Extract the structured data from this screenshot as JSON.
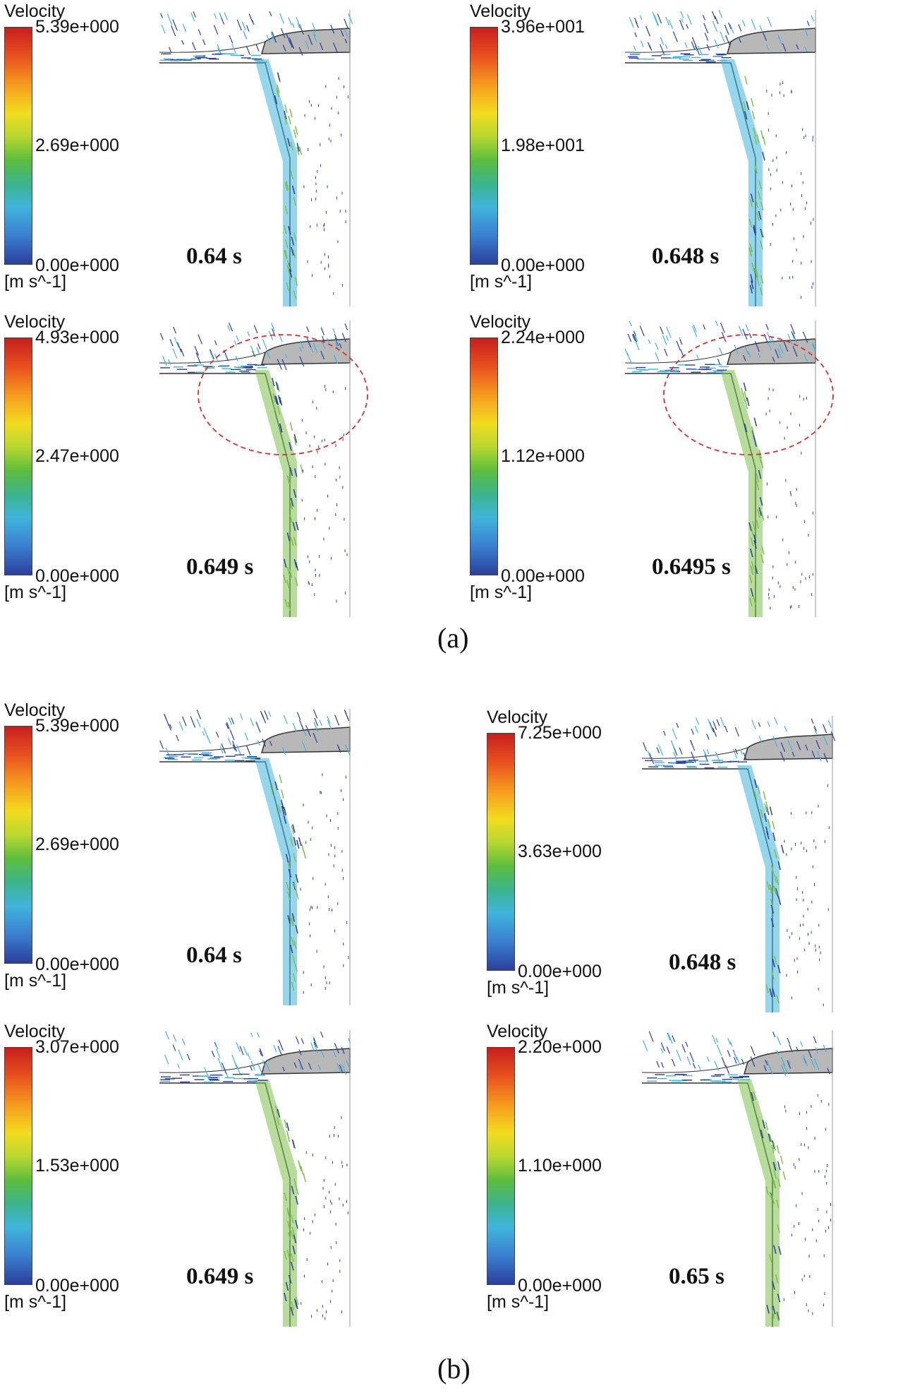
{
  "caption_a": "(a)",
  "caption_b": "(b)",
  "panels": [
    {
      "label": "Velocity",
      "max": "5.39e+000",
      "mid": "2.69e+000",
      "min": "0.00e+000",
      "unit": "[m s^-1]",
      "time": "0.64 s"
    },
    {
      "label": "Velocity",
      "max": "3.96e+001",
      "mid": "1.98e+001",
      "min": "0.00e+000",
      "unit": "[m s^-1]",
      "time": "0.648 s"
    },
    {
      "label": "Velocity",
      "max": "4.93e+000",
      "mid": "2.47e+000",
      "min": "0.00e+000",
      "unit": "[m s^-1]",
      "time": "0.649 s"
    },
    {
      "label": "Velocity",
      "max": "2.24e+000",
      "mid": "1.12e+000",
      "min": "0.00e+000",
      "unit": "[m s^-1]",
      "time": "0.6495 s"
    },
    {
      "label": "Velocity",
      "max": "5.39e+000",
      "mid": "2.69e+000",
      "min": "0.00e+000",
      "unit": "[m s^-1]",
      "time": "0.64 s"
    },
    {
      "label": "Velocity",
      "max": "7.25e+000",
      "mid": "3.63e+000",
      "min": "0.00e+000",
      "unit": "[m s^-1]",
      "time": "0.648 s"
    },
    {
      "label": "Velocity",
      "max": "3.07e+000",
      "mid": "1.53e+000",
      "min": "0.00e+000",
      "unit": "[m s^-1]",
      "time": "0.649 s"
    },
    {
      "label": "Velocity",
      "max": "2.20e+000",
      "mid": "1.10e+000",
      "min": "0.00e+000",
      "unit": "[m s^-1]",
      "time": "0.65 s"
    }
  ],
  "colors": {
    "vector_slow": "#2a3f9c",
    "vector_mid": "#40b4dc",
    "vector_fast": "#7cc04a",
    "wall": "#333333",
    "solid_fill": "#b8b8b8",
    "highlight_circle": "#d43030"
  }
}
